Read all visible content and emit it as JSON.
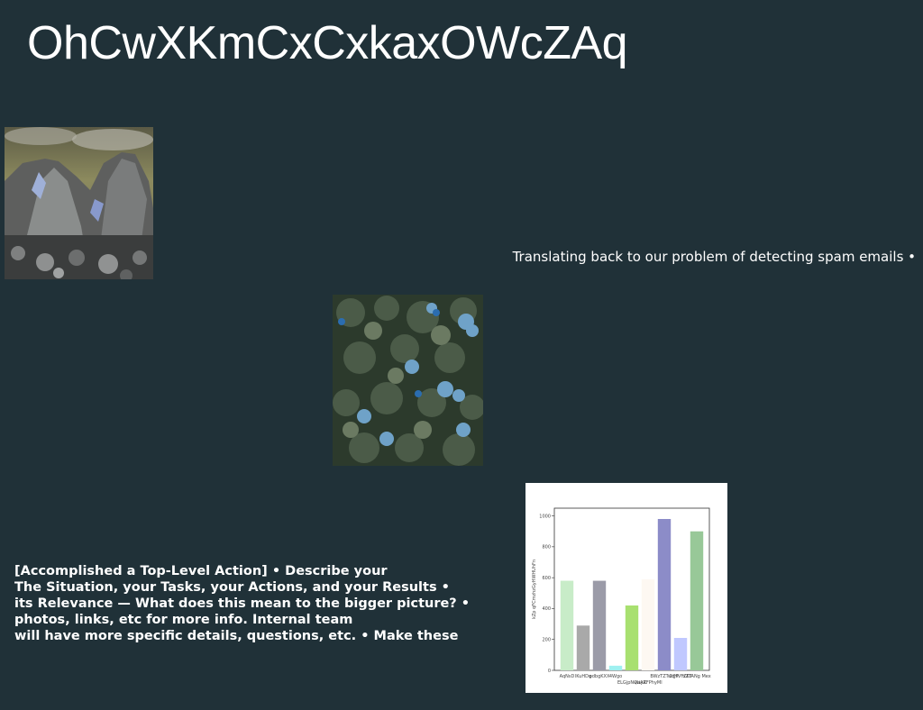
{
  "title": "OhCwXKmCxCxkaxOWcZAq",
  "caption": "Translating back to our problem of detecting spam emails •",
  "bullets": [
    "[Accomplished a Top-Level Action] • Describe your",
    "The Situation, your Tasks, your Actions, and your Results •",
    "its Relevance — What does this mean to the bigger picture? •",
    "photos, links, etc for more info. Internal team",
    "will have more specific details, questions, etc. • Make these"
  ],
  "images": {
    "mountain": "rocky-mountain-photo",
    "forest": "aerial-forest-photo"
  },
  "chart_data": {
    "type": "bar",
    "categories": [
      "AqNsD",
      "lKuHDq",
      "pdbgKXX",
      "4Wgo",
      "ELGjpNQaAR",
      "vLiyZFPhyMl",
      "BWzTZTwqJP",
      "DfHVFZKT",
      "nZTANg Mex"
    ],
    "values": [
      580,
      290,
      580,
      30,
      420,
      590,
      980,
      210,
      900
    ],
    "colors": [
      "#c8ecc8",
      "#a9a9a9",
      "#9b9ba8",
      "#9ff0f0",
      "#a8e070",
      "#fdf8f2",
      "#8c8cc8",
      "#c0c8ff",
      "#98c898"
    ],
    "ylabel": "kZp qFCmzhzGyHWHUhFn",
    "ylim": [
      0,
      1050
    ],
    "yticks": [
      "0",
      "200",
      "400",
      "600",
      "800",
      "1000"
    ],
    "grid": false
  }
}
